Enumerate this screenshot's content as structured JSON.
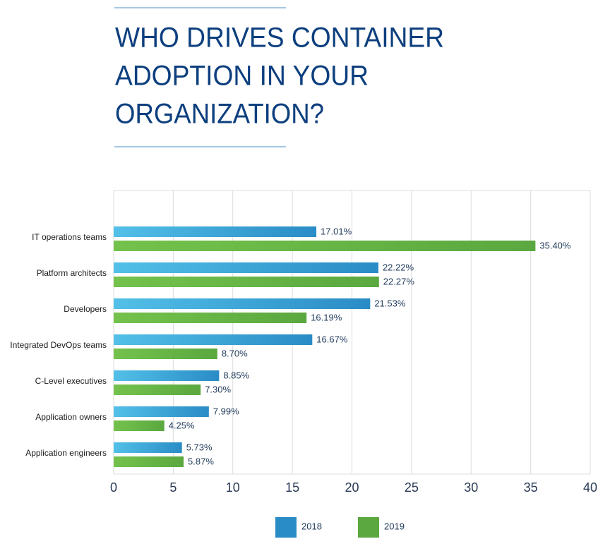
{
  "chart_data": {
    "type": "bar",
    "orientation": "horizontal",
    "title": [
      "WHO DRIVES CONTAINER",
      "ADOPTION IN YOUR",
      "ORGANIZATION?"
    ],
    "categories": [
      "IT operations teams",
      "Platform architects",
      "Developers",
      "Integrated DevOps teams",
      "C-Level executives",
      "Application owners",
      "Application engineers"
    ],
    "series": [
      {
        "name": "2018",
        "color": "#2a8cc6",
        "values": [
          17.01,
          22.22,
          21.53,
          16.67,
          8.85,
          7.99,
          5.73
        ],
        "value_labels": [
          "17.01%",
          "22.22%",
          "21.53%",
          "16.67%",
          "8.85%",
          "7.99%",
          "5.73%"
        ]
      },
      {
        "name": "2019",
        "color": "#5aa83f",
        "values": [
          35.4,
          22.27,
          16.19,
          8.7,
          7.3,
          4.25,
          5.87
        ],
        "value_labels": [
          "35.40%",
          "22.27%",
          "16.19%",
          "8.70%",
          "7.30%",
          "4.25%",
          "5.87%"
        ]
      }
    ],
    "xlim": [
      0,
      40
    ],
    "xticks": [
      0,
      5,
      10,
      15,
      20,
      25,
      30,
      35,
      40
    ],
    "grid": true,
    "legend": "bottom"
  }
}
